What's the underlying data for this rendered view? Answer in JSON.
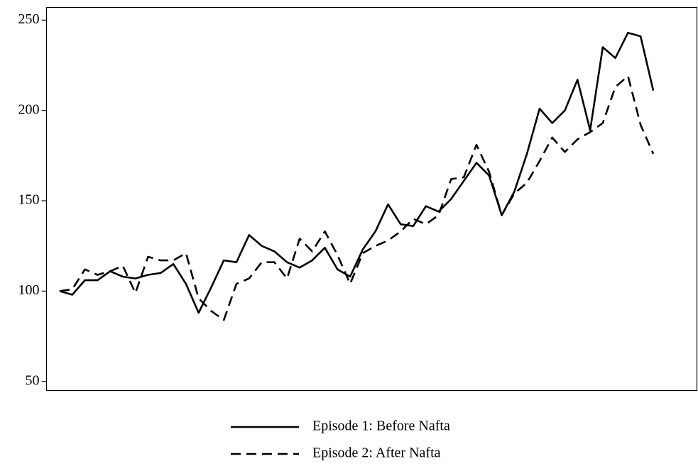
{
  "chart_data": {
    "type": "line",
    "categories": [
      null,
      null,
      null,
      null,
      null,
      null,
      null,
      null,
      null,
      null,
      null,
      null,
      null,
      null,
      null,
      null,
      null,
      null,
      null,
      null,
      null,
      null,
      null,
      null,
      null,
      null,
      null,
      null,
      null,
      null,
      null,
      null,
      null,
      null,
      null,
      null,
      null,
      null,
      null,
      null,
      null,
      null,
      null,
      null,
      null,
      null,
      null,
      null
    ],
    "series": [
      {
        "name": "Episode 1: Before Nafta",
        "color": "#000000",
        "dash": "solid",
        "values": [
          100,
          98,
          106,
          106,
          111,
          108,
          107,
          109,
          110,
          115,
          104,
          88,
          102,
          117,
          116,
          131,
          125,
          122,
          116,
          113,
          117,
          124,
          112,
          108,
          123,
          133,
          148,
          137,
          136,
          147,
          144,
          151,
          161,
          171,
          164,
          142,
          155,
          176,
          201,
          193,
          200,
          217,
          189,
          235,
          229,
          243,
          241,
          211
        ]
      },
      {
        "name": "Episode 2: After Nafta",
        "color": "#000000",
        "dash": "dashed",
        "values": [
          100,
          101,
          112,
          109,
          111,
          114,
          99,
          119,
          117,
          117,
          121,
          96,
          89,
          84,
          104,
          107,
          116,
          116,
          107,
          129,
          122,
          133,
          120,
          104,
          121,
          125,
          128,
          133,
          140,
          137,
          142,
          162,
          163,
          181,
          166,
          142,
          154,
          160,
          172,
          185,
          177,
          184,
          188,
          193,
          213,
          219,
          192,
          176
        ]
      }
    ],
    "ylim": [
      45,
      257
    ],
    "yticks": [
      50,
      100,
      150,
      200,
      250
    ],
    "legend": "bottom"
  }
}
